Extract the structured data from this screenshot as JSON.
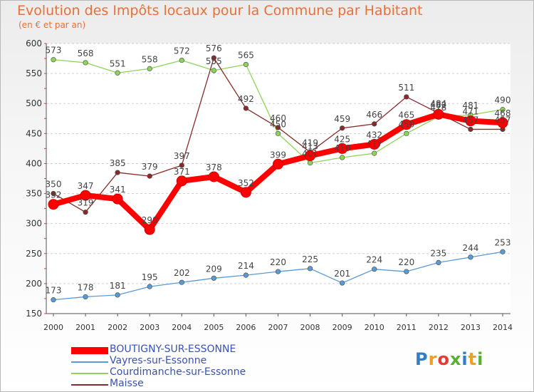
{
  "header": {
    "title": "Evolution des Impôts locaux pour la Commune par Habitant",
    "subtitle": "(en € et par an)"
  },
  "logo": {
    "text": "Proxiti"
  },
  "chart_data": {
    "type": "line",
    "title": "Evolution des Impôts locaux pour la Commune par Habitant",
    "subtitle": "(en € et par an)",
    "xlabel": "",
    "ylabel": "",
    "x": [
      "2000",
      "2001",
      "2002",
      "2003",
      "2004",
      "2005",
      "2006",
      "2007",
      "2008",
      "2009",
      "2010",
      "2011",
      "2012",
      "2013",
      "2014"
    ],
    "ylim": [
      150,
      600
    ],
    "yticks": [
      150,
      200,
      250,
      300,
      350,
      400,
      450,
      500,
      550,
      600
    ],
    "grid": "horizontal dashed",
    "legend_position": "bottom-left",
    "series": [
      {
        "name": "BOUTIGNY-SUR-ESSONNE",
        "color": "#ff0000",
        "values": [
          332,
          347,
          341,
          290,
          371,
          378,
          352,
          399,
          413,
          425,
          432,
          465,
          482,
          471,
          468
        ],
        "labels": [
          "332",
          "347",
          "341",
          "290",
          "371",
          "378",
          "352",
          "399",
          "413",
          "425",
          "432",
          "465",
          "482",
          "471",
          "468"
        ]
      },
      {
        "name": "Vayres-sur-Essonne",
        "color": "#5b9bd5",
        "values": [
          173,
          178,
          181,
          195,
          202,
          209,
          214,
          220,
          225,
          201,
          224,
          220,
          235,
          244,
          253
        ],
        "labels": [
          "173",
          "178",
          "181",
          "195",
          "202",
          "209",
          "214",
          "220",
          "225",
          "201",
          "224",
          "220",
          "235",
          "244",
          "253"
        ]
      },
      {
        "name": "Courdimanche-sur-Essonne",
        "color": "#8fd45a",
        "values": [
          573,
          568,
          551,
          558,
          572,
          555,
          565,
          450,
          401,
          410,
          417,
          450,
          478,
          481,
          490
        ],
        "labels": [
          "573",
          "568",
          "551",
          "558",
          "572",
          "555",
          "565",
          "450",
          "401",
          "410",
          "417",
          "450",
          "478",
          "481",
          "490"
        ]
      },
      {
        "name": "Maisse",
        "color": "#8a2a2a",
        "values": [
          350,
          319,
          385,
          379,
          397,
          576,
          492,
          460,
          419,
          459,
          466,
          511,
          484,
          457,
          457
        ],
        "labels": [
          "350",
          "319",
          "385",
          "379",
          "397",
          "576",
          "492",
          "460",
          "419",
          "459",
          "466",
          "511",
          "484",
          "457",
          "457"
        ]
      }
    ]
  }
}
